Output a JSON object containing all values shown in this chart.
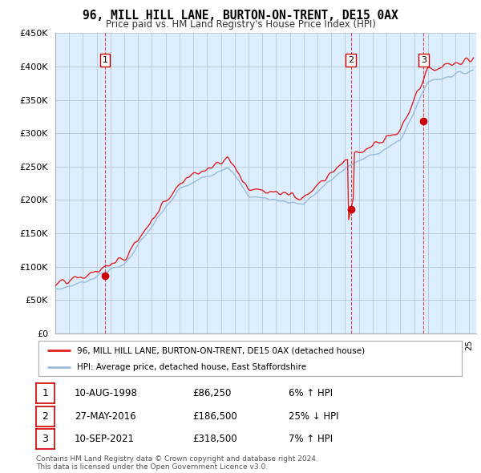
{
  "title": "96, MILL HILL LANE, BURTON-ON-TRENT, DE15 0AX",
  "subtitle": "Price paid vs. HM Land Registry's House Price Index (HPI)",
  "ylabel_ticks": [
    "£0",
    "£50K",
    "£100K",
    "£150K",
    "£200K",
    "£250K",
    "£300K",
    "£350K",
    "£400K",
    "£450K"
  ],
  "ytick_values": [
    0,
    50000,
    100000,
    150000,
    200000,
    250000,
    300000,
    350000,
    400000,
    450000
  ],
  "ylim": [
    0,
    450000
  ],
  "xlim_start": 1995.0,
  "xlim_end": 2025.5,
  "sale_dates": [
    1998.61,
    2016.41,
    2021.69
  ],
  "sale_prices": [
    86250,
    186500,
    318500
  ],
  "sale_labels": [
    "1",
    "2",
    "3"
  ],
  "red_line_color": "#dd2222",
  "blue_line_color": "#99bbdd",
  "chart_bg_color": "#ddeeff",
  "marker_color": "#cc0000",
  "sale_label_border": "#cc0000",
  "grid_color": "#bbccdd",
  "bg_color": "#ffffff",
  "legend_line1": "96, MILL HILL LANE, BURTON-ON-TRENT, DE15 0AX (detached house)",
  "legend_line2": "HPI: Average price, detached house, East Staffordshire",
  "table_rows": [
    {
      "num": "1",
      "date": "10-AUG-1998",
      "price": "£86,250",
      "hpi": "6% ↑ HPI"
    },
    {
      "num": "2",
      "date": "27-MAY-2016",
      "price": "£186,500",
      "hpi": "25% ↓ HPI"
    },
    {
      "num": "3",
      "date": "10-SEP-2021",
      "price": "£318,500",
      "hpi": "7% ↑ HPI"
    }
  ],
  "footer": "Contains HM Land Registry data © Crown copyright and database right 2024.\nThis data is licensed under the Open Government Licence v3.0.",
  "dashed_vline_color": "#dd2222"
}
